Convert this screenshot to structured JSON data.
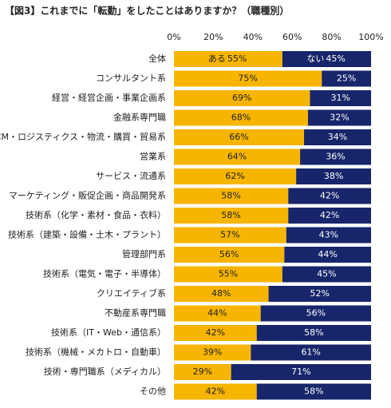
{
  "chart_data": {
    "type": "stacked-bar-horizontal",
    "title": "【図3】これまでに「転勤」をしたことはありますか？（職種別）",
    "categories": [
      "全体",
      "コンサルタント系",
      "経営・経営企画・事業企画系",
      "金融系専門職",
      "SCM・ロジスティクス・物流・購買・貿易系",
      "営業系",
      "サービス・流通系",
      "マーケティング・販促企画・商品開発系",
      "技術系（化学・素材・食品・衣料）",
      "技術系（建築・設備・土木・プラント）",
      "管理部門系",
      "技術系（電気・電子・半導体）",
      "クリエイティブ系",
      "不動産系専門職",
      "技術系（IT・Web・通信系）",
      "技術系（機械・メカトロ・自動車）",
      "技術・専門職系（メディカル）",
      "その他"
    ],
    "series": [
      {
        "name": "ある",
        "color": "#f7b500",
        "values": [
          55,
          75,
          69,
          68,
          66,
          64,
          62,
          58,
          58,
          57,
          56,
          55,
          48,
          44,
          42,
          39,
          29,
          42
        ],
        "value_labels": [
          "55%",
          "75%",
          "69%",
          "68%",
          "66%",
          "64%",
          "62%",
          "58%",
          "58%",
          "57%",
          "56%",
          "55%",
          "48%",
          "44%",
          "42%",
          "39%",
          "29%",
          "42%"
        ]
      },
      {
        "name": "ない",
        "color": "#17266a",
        "values": [
          45,
          25,
          31,
          32,
          34,
          36,
          38,
          42,
          42,
          43,
          44,
          45,
          52,
          56,
          58,
          61,
          71,
          58
        ],
        "value_labels": [
          "45%",
          "25%",
          "31%",
          "32%",
          "34%",
          "36%",
          "38%",
          "42%",
          "42%",
          "43%",
          "44%",
          "45%",
          "52%",
          "56%",
          "58%",
          "61%",
          "71%",
          "58%"
        ]
      }
    ],
    "xlim": [
      0,
      100
    ],
    "xticks": [
      {
        "value": 0,
        "label": "0%"
      },
      {
        "value": 20,
        "label": "20%"
      },
      {
        "value": 40,
        "label": "40%"
      },
      {
        "value": 60,
        "label": "60%"
      },
      {
        "value": 80,
        "label": "80%"
      },
      {
        "value": 100,
        "label": "100%"
      }
    ]
  }
}
